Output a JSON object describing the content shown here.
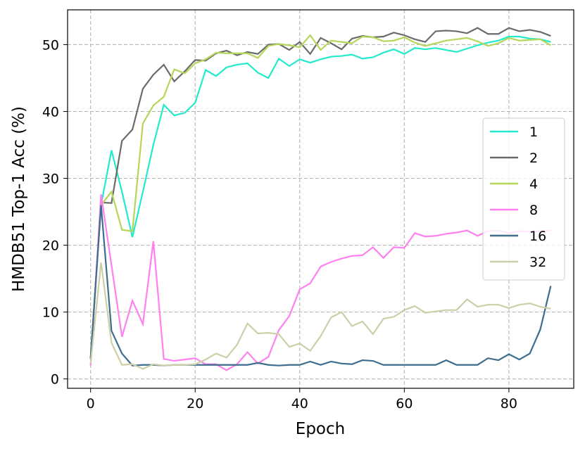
{
  "chart_data": {
    "type": "line",
    "x_label": "Epoch",
    "y_label": "HMDB51 Top-1 Acc (%)",
    "x": [
      0,
      2,
      4,
      6,
      8,
      10,
      12,
      14,
      16,
      18,
      20,
      22,
      24,
      26,
      28,
      30,
      32,
      34,
      36,
      38,
      40,
      42,
      44,
      46,
      48,
      50,
      52,
      54,
      56,
      58,
      60,
      62,
      64,
      66,
      68,
      70,
      72,
      74,
      76,
      78,
      80,
      82,
      84,
      86,
      88
    ],
    "series": [
      {
        "name": "1",
        "color": "#22ebcc",
        "values": [
          3,
          26,
          34.2,
          28,
          21.2,
          28,
          35,
          41,
          39.4,
          39.8,
          41.3,
          46.2,
          45.3,
          46.6,
          47,
          47.2,
          45.8,
          45,
          47.9,
          46.8,
          47.8,
          47.3,
          47.8,
          48.2,
          48.3,
          48.5,
          47.9,
          48.1,
          48.8,
          49.3,
          48.6,
          49.5,
          49.3,
          49.5,
          49.2,
          48.9,
          49.4,
          49.9,
          50.3,
          50.6,
          51.2,
          51.2,
          50.9,
          50.8,
          50.4
        ]
      },
      {
        "name": "2",
        "color": "#6b6b6b",
        "values": [
          3,
          26.4,
          26.3,
          35.6,
          37.3,
          43.4,
          45.5,
          47,
          44.5,
          46,
          47.7,
          47.6,
          48.7,
          49.1,
          48.4,
          48.9,
          48.6,
          50,
          50.1,
          49.2,
          50.4,
          48.6,
          51,
          50.2,
          49.3,
          50.9,
          51.3,
          51.1,
          51.2,
          51.8,
          51.4,
          50.8,
          50.4,
          52,
          52.1,
          52,
          51.7,
          52.5,
          51.6,
          51.6,
          52.5,
          52,
          52.2,
          51.9,
          51.3
        ]
      },
      {
        "name": "4",
        "color": "#b5d65a",
        "values": [
          3,
          26,
          28,
          22.3,
          22.1,
          38.2,
          40.9,
          42.2,
          46.3,
          45.7,
          47.2,
          47.8,
          48.8,
          48.7,
          48.7,
          48.7,
          48,
          49.8,
          50.1,
          49.9,
          49.6,
          51.4,
          49.2,
          50.6,
          50.4,
          50.2,
          51.2,
          51.1,
          50.5,
          50.6,
          51.1,
          50.3,
          49.8,
          50.2,
          50.6,
          50.8,
          51,
          50.5,
          49.8,
          50.2,
          51,
          50.6,
          50.7,
          50.8,
          49.9
        ]
      },
      {
        "name": "8",
        "color": "#ff80ee",
        "values": [
          2,
          27.6,
          17,
          6.3,
          11.7,
          8.2,
          20.6,
          3,
          2.7,
          2.9,
          3.1,
          2.2,
          2.2,
          1.3,
          2.2,
          4,
          2.3,
          3.3,
          7.3,
          9.4,
          13.4,
          14.3,
          16.8,
          17.5,
          18,
          18.4,
          18.5,
          19.7,
          18.1,
          19.7,
          19.6,
          21.8,
          21.3,
          21.4,
          21.7,
          21.9,
          22.2,
          21.4,
          22.1,
          22.2,
          21.8,
          22.1,
          22,
          22.1,
          22.2
        ]
      },
      {
        "name": "16",
        "color": "#3e6d8e",
        "values": [
          3,
          26,
          7.2,
          3.8,
          2,
          2.1,
          2.1,
          2,
          2.1,
          2.1,
          2.1,
          2.1,
          2.1,
          2.1,
          2.1,
          2.1,
          2.4,
          2.1,
          2,
          2.1,
          2.1,
          2.6,
          2.1,
          2.6,
          2.3,
          2.2,
          2.8,
          2.7,
          2.1,
          2.1,
          2.1,
          2.1,
          2.1,
          2.1,
          2.8,
          2.1,
          2.1,
          2.1,
          3.1,
          2.8,
          3.7,
          2.9,
          3.8,
          7.4,
          13.9
        ]
      },
      {
        "name": "32",
        "color": "#cccfa8",
        "values": [
          2.3,
          17.4,
          5.4,
          2.1,
          2.2,
          1.5,
          2.2,
          2,
          2.1,
          2.1,
          2.2,
          2.9,
          3.8,
          3.2,
          5.1,
          8.3,
          6.8,
          6.9,
          6.7,
          4.8,
          5.3,
          4.2,
          6.4,
          9.2,
          10,
          7.9,
          8.6,
          6.7,
          9,
          9.3,
          10.3,
          10.9,
          9.9,
          10.1,
          10.3,
          10.3,
          11.9,
          10.8,
          11.1,
          11.1,
          10.6,
          11.1,
          11.3,
          10.8,
          10.5
        ]
      }
    ],
    "xlim": [
      -4.4,
      92.4
    ],
    "ylim": [
      -1.4,
      55.2
    ],
    "xticks": [
      0,
      20,
      40,
      60,
      80
    ],
    "yticks": [
      0,
      10,
      20,
      30,
      40,
      50
    ],
    "grid": true,
    "legend": "center right"
  }
}
